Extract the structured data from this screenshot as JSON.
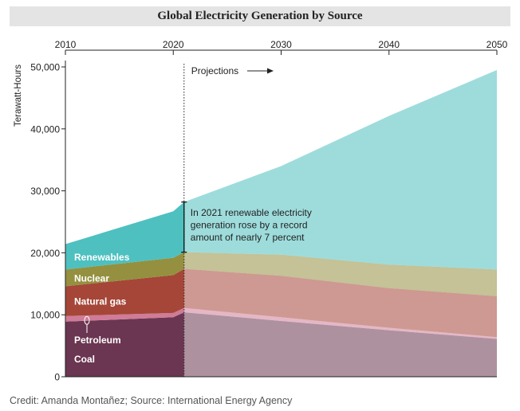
{
  "credit": "Credit: Amanda Montañez; Source: International Energy Agency",
  "chart_data": {
    "type": "area",
    "stacked": true,
    "title": "Global Electricity Generation by Source",
    "ylabel": "Terawatt-Hours",
    "xlabel": "",
    "xlim": [
      2010,
      2050
    ],
    "ylim": [
      0,
      50000
    ],
    "x_ticks": [
      2010,
      2020,
      2030,
      2040,
      2050
    ],
    "x_tick_labels": [
      "2010",
      "2020",
      "2030",
      "2040",
      "2050"
    ],
    "y_ticks": [
      0,
      10000,
      20000,
      30000,
      40000,
      50000
    ],
    "y_tick_labels": [
      "0",
      "10,000",
      "20,000",
      "30,000",
      "40,000",
      "50,000"
    ],
    "projection_start": 2021,
    "projection_label": "Projections",
    "x": [
      2010,
      2020,
      2021,
      2030,
      2040,
      2050
    ],
    "series": [
      {
        "name": "Coal",
        "color": "#6b3651",
        "values": [
          8900,
          9600,
          10400,
          9000,
          7500,
          6100
        ]
      },
      {
        "name": "Petroleum",
        "color": "#d07b97",
        "values": [
          900,
          700,
          700,
          600,
          400,
          300
        ]
      },
      {
        "name": "Natural gas",
        "color": "#a54638",
        "values": [
          4800,
          6100,
          6300,
          6700,
          6400,
          6600
        ]
      },
      {
        "name": "Nuclear",
        "color": "#94903f",
        "values": [
          2700,
          2800,
          2700,
          3400,
          3800,
          4300
        ]
      },
      {
        "name": "Renewables",
        "color": "#4ec0c0",
        "values": [
          4100,
          7500,
          8100,
          14300,
          24000,
          32200
        ]
      }
    ],
    "annotation": "In 2021 renewable electricity generation rose by a record amount of nearly 7 percent"
  }
}
